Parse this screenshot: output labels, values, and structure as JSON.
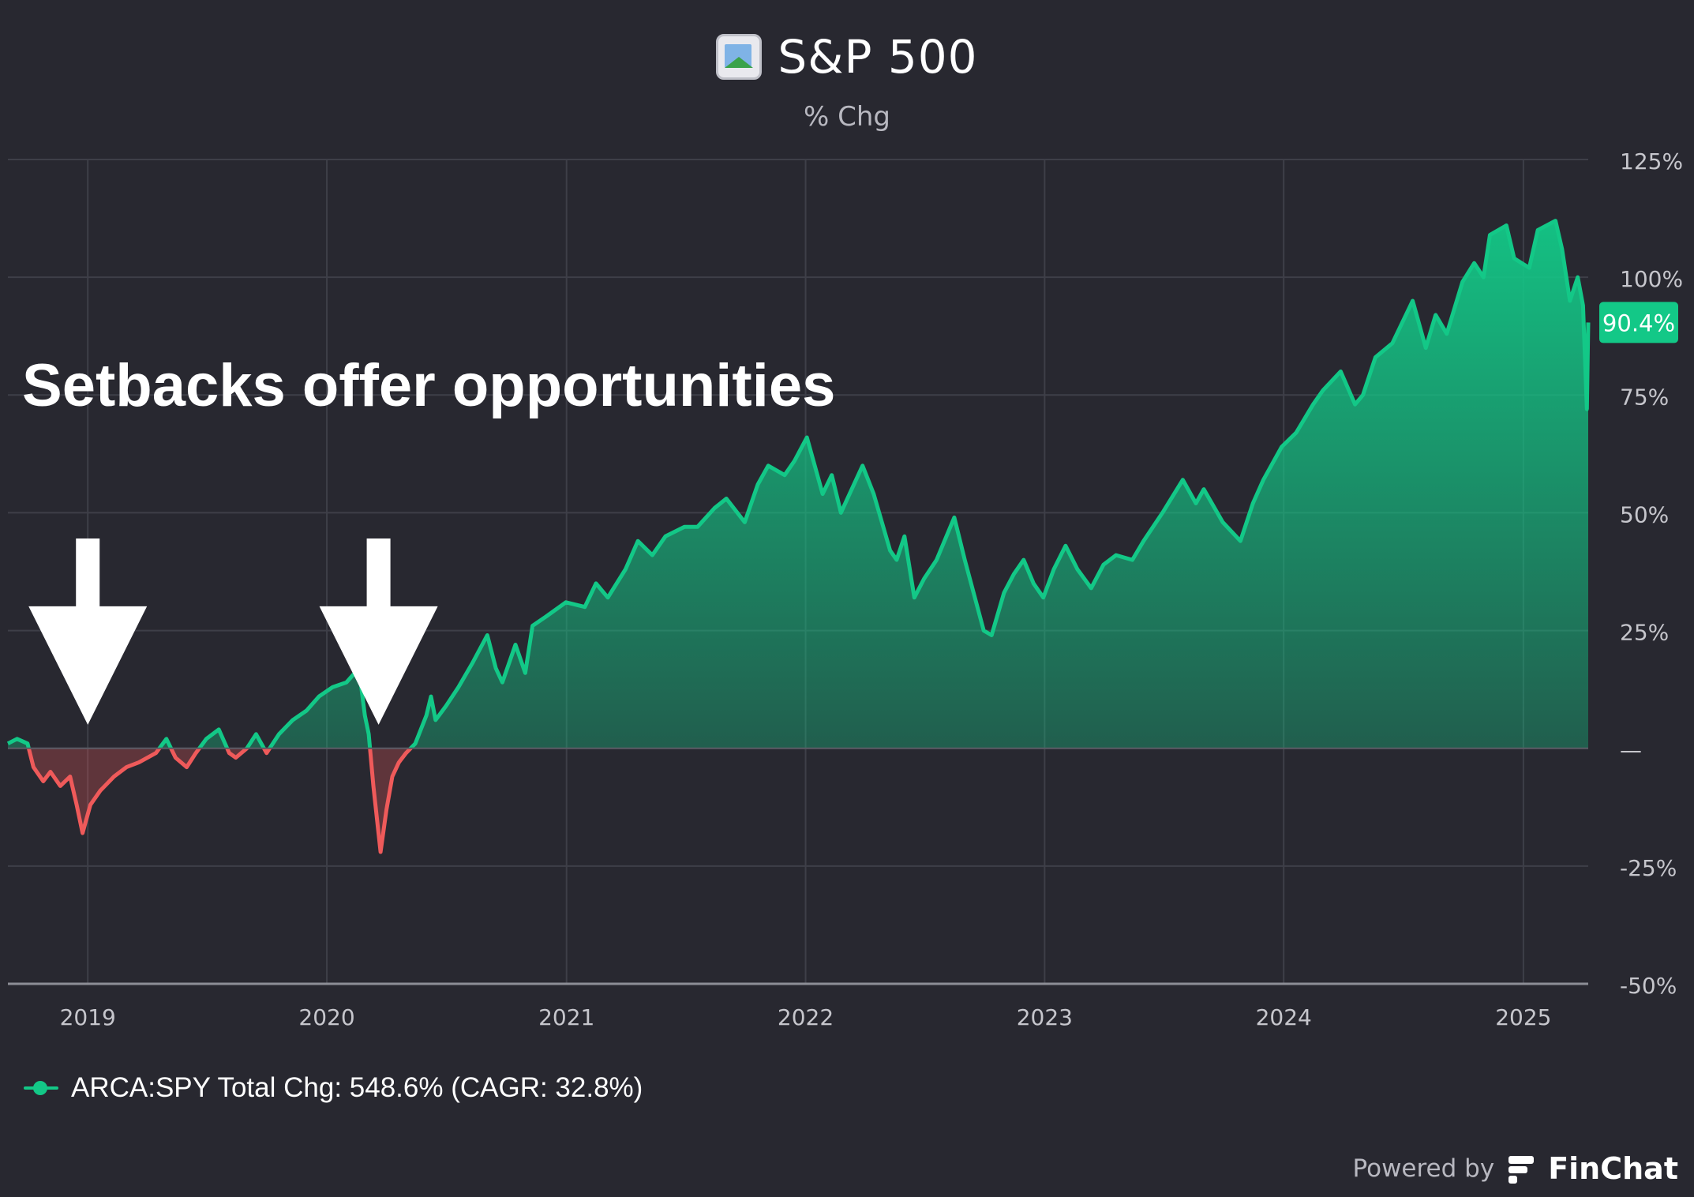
{
  "header": {
    "title": "S&P 500",
    "subtitle": "% Chg",
    "logo_icon": "broken-image-icon"
  },
  "annotation": {
    "headline": "Setbacks offer opportunities",
    "arrows": [
      {
        "name": "arrow-2019",
        "x": "2019-01-01",
        "y": 5
      },
      {
        "name": "arrow-2020",
        "x": "2020-03-20",
        "y": 5
      }
    ]
  },
  "legend": {
    "text": "ARCA:SPY Total Chg: 548.6% (CAGR: 32.8%)",
    "color": "#13c887"
  },
  "footer": {
    "powered_by": "Powered by",
    "brand": "FinChat"
  },
  "colors": {
    "background": "#282830",
    "positive": "#13c887",
    "negative": "#ef5a5a",
    "grid": "#3e3f48",
    "axis_text": "#c6c6cc",
    "badge": "#13c887"
  },
  "chart_data": {
    "type": "area",
    "ylim": [
      -50,
      125
    ],
    "xlim": [
      "2018-09-01",
      "2025-04-10"
    ],
    "yticks": [
      125,
      100,
      75,
      50,
      25,
      0,
      -25,
      -50
    ],
    "ytick_labels": [
      "125%",
      "100%",
      "75%",
      "50%",
      "25%",
      "—",
      "-25%",
      "-50%"
    ],
    "xticks": [
      "2019-01-01",
      "2020-01-01",
      "2021-01-01",
      "2022-01-01",
      "2023-01-01",
      "2024-01-01",
      "2025-01-01"
    ],
    "xtick_labels": [
      "2019",
      "2020",
      "2021",
      "2022",
      "2023",
      "2024",
      "2025"
    ],
    "last_value_label": "90.4%",
    "last_value": 90.4,
    "grid": true,
    "series": [
      {
        "points": [
          [
            "2018-09-01",
            1
          ],
          [
            "2018-09-15",
            2
          ],
          [
            "2018-10-01",
            1
          ],
          [
            "2018-10-10",
            -4
          ],
          [
            "2018-10-25",
            -7
          ],
          [
            "2018-11-05",
            -5
          ],
          [
            "2018-11-20",
            -8
          ],
          [
            "2018-12-05",
            -6
          ],
          [
            "2018-12-15",
            -12
          ],
          [
            "2018-12-24",
            -18
          ],
          [
            "2019-01-05",
            -12
          ],
          [
            "2019-01-20",
            -9
          ],
          [
            "2019-02-10",
            -6
          ],
          [
            "2019-03-01",
            -4
          ],
          [
            "2019-03-20",
            -3
          ],
          [
            "2019-04-15",
            -1
          ],
          [
            "2019-05-01",
            2
          ],
          [
            "2019-05-15",
            -2
          ],
          [
            "2019-06-01",
            -4
          ],
          [
            "2019-06-15",
            -1
          ],
          [
            "2019-07-01",
            2
          ],
          [
            "2019-07-20",
            4
          ],
          [
            "2019-08-05",
            -1
          ],
          [
            "2019-08-15",
            -2
          ],
          [
            "2019-09-01",
            0
          ],
          [
            "2019-09-15",
            3
          ],
          [
            "2019-10-01",
            -1
          ],
          [
            "2019-10-20",
            3
          ],
          [
            "2019-11-10",
            6
          ],
          [
            "2019-12-01",
            8
          ],
          [
            "2019-12-20",
            11
          ],
          [
            "2020-01-10",
            13
          ],
          [
            "2020-01-31",
            14
          ],
          [
            "2020-02-19",
            17
          ],
          [
            "2020-02-28",
            7
          ],
          [
            "2020-03-05",
            3
          ],
          [
            "2020-03-12",
            -8
          ],
          [
            "2020-03-23",
            -22
          ],
          [
            "2020-04-01",
            -13
          ],
          [
            "2020-04-10",
            -6
          ],
          [
            "2020-04-20",
            -3
          ],
          [
            "2020-05-01",
            -1
          ],
          [
            "2020-05-15",
            1
          ],
          [
            "2020-06-01",
            7
          ],
          [
            "2020-06-08",
            11
          ],
          [
            "2020-06-15",
            6
          ],
          [
            "2020-07-01",
            9
          ],
          [
            "2020-07-20",
            13
          ],
          [
            "2020-08-10",
            18
          ],
          [
            "2020-09-02",
            24
          ],
          [
            "2020-09-15",
            17
          ],
          [
            "2020-09-25",
            14
          ],
          [
            "2020-10-15",
            22
          ],
          [
            "2020-10-30",
            16
          ],
          [
            "2020-11-10",
            26
          ],
          [
            "2020-12-01",
            28
          ],
          [
            "2020-12-31",
            31
          ],
          [
            "2021-01-29",
            30
          ],
          [
            "2021-02-15",
            35
          ],
          [
            "2021-03-05",
            32
          ],
          [
            "2021-04-01",
            38
          ],
          [
            "2021-04-20",
            44
          ],
          [
            "2021-05-12",
            41
          ],
          [
            "2021-06-01",
            45
          ],
          [
            "2021-06-30",
            47
          ],
          [
            "2021-07-20",
            47
          ],
          [
            "2021-08-15",
            51
          ],
          [
            "2021-09-02",
            53
          ],
          [
            "2021-09-30",
            48
          ],
          [
            "2021-10-20",
            56
          ],
          [
            "2021-11-05",
            60
          ],
          [
            "2021-11-30",
            58
          ],
          [
            "2021-12-15",
            61
          ],
          [
            "2022-01-03",
            66
          ],
          [
            "2022-01-27",
            54
          ],
          [
            "2022-02-10",
            58
          ],
          [
            "2022-02-24",
            50
          ],
          [
            "2022-03-29",
            60
          ],
          [
            "2022-04-15",
            54
          ],
          [
            "2022-05-10",
            42
          ],
          [
            "2022-05-20",
            40
          ],
          [
            "2022-06-01",
            45
          ],
          [
            "2022-06-16",
            32
          ],
          [
            "2022-07-01",
            36
          ],
          [
            "2022-07-20",
            40
          ],
          [
            "2022-08-16",
            49
          ],
          [
            "2022-09-01",
            40
          ],
          [
            "2022-09-30",
            25
          ],
          [
            "2022-10-12",
            24
          ],
          [
            "2022-10-31",
            33
          ],
          [
            "2022-11-15",
            37
          ],
          [
            "2022-11-30",
            40
          ],
          [
            "2022-12-15",
            35
          ],
          [
            "2022-12-30",
            32
          ],
          [
            "2023-01-15",
            38
          ],
          [
            "2023-02-02",
            43
          ],
          [
            "2023-02-20",
            38
          ],
          [
            "2023-03-13",
            34
          ],
          [
            "2023-04-01",
            39
          ],
          [
            "2023-04-20",
            41
          ],
          [
            "2023-05-15",
            40
          ],
          [
            "2023-06-01",
            44
          ],
          [
            "2023-06-30",
            50
          ],
          [
            "2023-07-31",
            57
          ],
          [
            "2023-08-20",
            52
          ],
          [
            "2023-09-01",
            55
          ],
          [
            "2023-09-30",
            48
          ],
          [
            "2023-10-27",
            44
          ],
          [
            "2023-11-15",
            52
          ],
          [
            "2023-12-01",
            57
          ],
          [
            "2023-12-29",
            64
          ],
          [
            "2024-01-20",
            67
          ],
          [
            "2024-02-15",
            73
          ],
          [
            "2024-03-01",
            76
          ],
          [
            "2024-03-28",
            80
          ],
          [
            "2024-04-19",
            73
          ],
          [
            "2024-05-01",
            75
          ],
          [
            "2024-05-20",
            83
          ],
          [
            "2024-06-15",
            86
          ],
          [
            "2024-07-16",
            95
          ],
          [
            "2024-08-05",
            85
          ],
          [
            "2024-08-20",
            92
          ],
          [
            "2024-09-06",
            88
          ],
          [
            "2024-09-30",
            99
          ],
          [
            "2024-10-18",
            103
          ],
          [
            "2024-11-01",
            100
          ],
          [
            "2024-11-11",
            109
          ],
          [
            "2024-12-06",
            111
          ],
          [
            "2024-12-18",
            104
          ],
          [
            "2025-01-10",
            102
          ],
          [
            "2025-01-23",
            110
          ],
          [
            "2025-02-19",
            112
          ],
          [
            "2025-03-01",
            106
          ],
          [
            "2025-03-13",
            95
          ],
          [
            "2025-03-25",
            100
          ],
          [
            "2025-04-02",
            94
          ],
          [
            "2025-04-08",
            72
          ],
          [
            "2025-04-10",
            90.4
          ]
        ]
      }
    ]
  }
}
